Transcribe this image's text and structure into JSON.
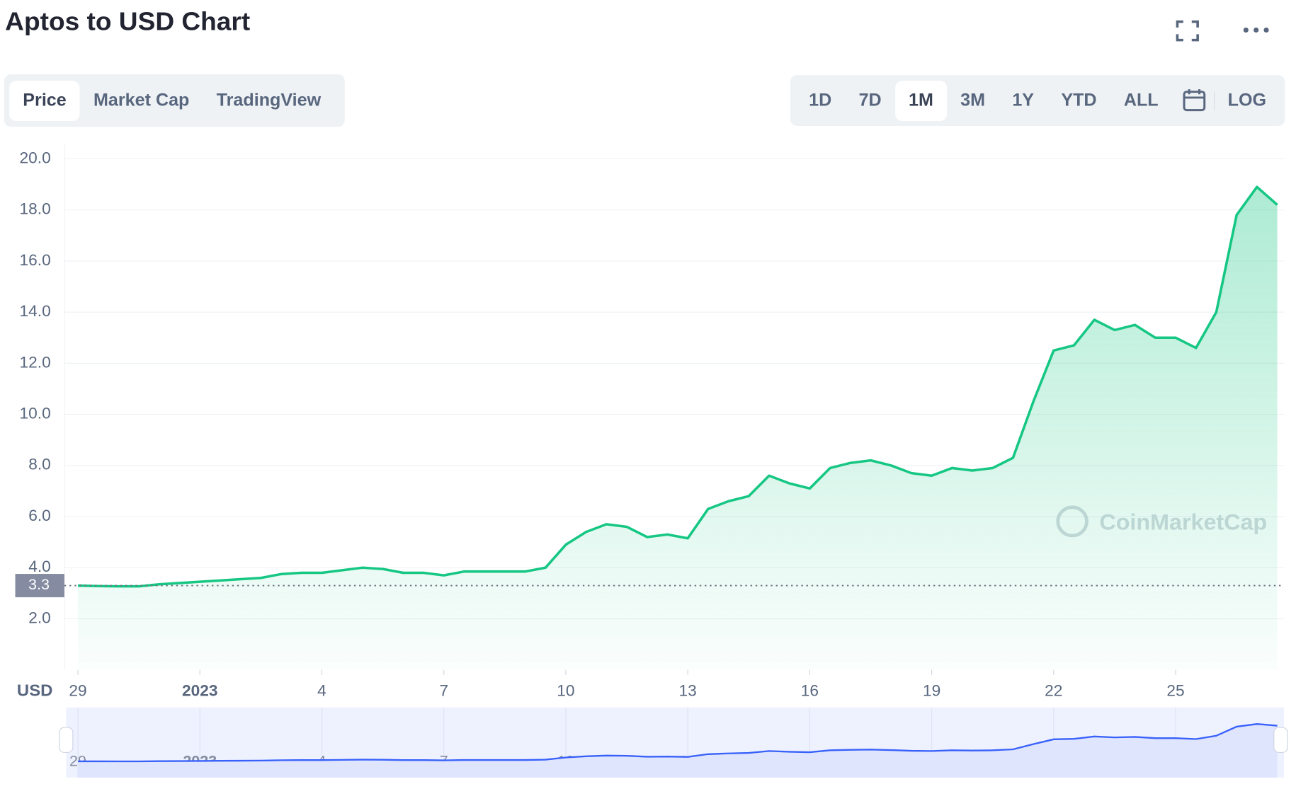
{
  "header": {
    "title": "Aptos to USD Chart"
  },
  "tabs": [
    "Price",
    "Market Cap",
    "TradingView"
  ],
  "ranges": [
    "1D",
    "7D",
    "1M",
    "3M",
    "1Y",
    "YTD",
    "ALL"
  ],
  "log_button": "LOG",
  "chart_data": {
    "type": "line",
    "color": "#16c784",
    "navigator_color": "#3861fb",
    "categories": [
      "29",
      null,
      null,
      null,
      null,
      null,
      "2023",
      null,
      null,
      null,
      null,
      null,
      "4",
      null,
      null,
      null,
      null,
      null,
      "7",
      null,
      null,
      null,
      null,
      null,
      "10",
      null,
      null,
      null,
      null,
      null,
      "13",
      null,
      null,
      null,
      null,
      null,
      "16",
      null,
      null,
      null,
      null,
      null,
      "19",
      null,
      null,
      null,
      null,
      null,
      "22",
      null,
      null,
      null,
      null,
      null,
      "25",
      null,
      null,
      null,
      null,
      null
    ],
    "values": [
      3.3,
      3.28,
      3.27,
      3.27,
      3.35,
      3.4,
      3.45,
      3.5,
      3.55,
      3.6,
      3.75,
      3.8,
      3.8,
      3.9,
      4.0,
      3.95,
      3.8,
      3.8,
      3.7,
      3.85,
      3.85,
      3.85,
      3.85,
      4.0,
      4.9,
      5.4,
      5.7,
      5.6,
      5.2,
      5.3,
      5.15,
      6.3,
      6.6,
      6.8,
      7.6,
      7.3,
      7.1,
      7.9,
      8.1,
      8.2,
      8.0,
      7.7,
      7.6,
      7.9,
      7.8,
      7.9,
      8.3,
      10.5,
      12.5,
      12.7,
      13.7,
      13.3,
      13.5,
      13.0,
      13.0,
      12.6,
      14.0,
      17.8,
      18.9,
      18.2
    ],
    "ylim": [
      0,
      20.6
    ],
    "yticks": [
      {
        "value": 2,
        "label": "2.0"
      },
      {
        "value": 4,
        "label": "4.0"
      },
      {
        "value": 6,
        "label": "6.0"
      },
      {
        "value": 8,
        "label": "8.0"
      },
      {
        "value": 10,
        "label": "10.0"
      },
      {
        "value": 12,
        "label": "12.0"
      },
      {
        "value": 14,
        "label": "14.0"
      },
      {
        "value": 16,
        "label": "16.0"
      },
      {
        "value": 18,
        "label": "18.0"
      },
      {
        "value": 20,
        "label": "20.0"
      }
    ],
    "grid": true,
    "y_axis_unit": "USD",
    "current_price": {
      "value": 3.3,
      "label": "3.3"
    },
    "watermark": "CoinMarketCap"
  }
}
